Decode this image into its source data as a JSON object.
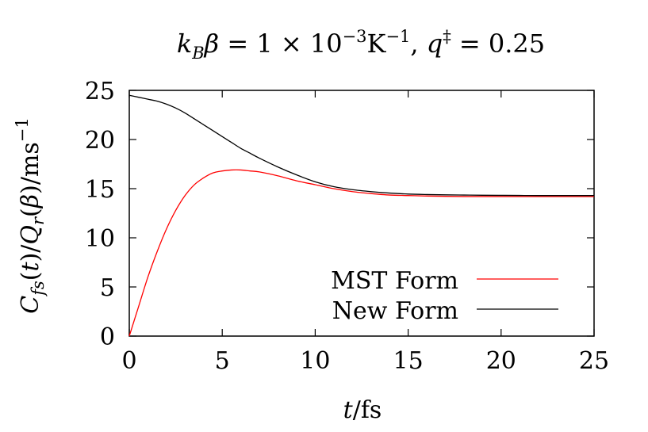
{
  "chart_data": {
    "type": "line",
    "title": "k_Bβ = 1 × 10⁻³K⁻¹,  q‡ = 0.25",
    "xlabel": "t/fs",
    "ylabel": "C_fs(t)/Q_r(β)/ms⁻¹",
    "xlim": [
      0,
      25
    ],
    "ylim": [
      0,
      25
    ],
    "x_ticks": [
      "0",
      "5",
      "10",
      "15",
      "20",
      "25"
    ],
    "y_ticks": [
      "0",
      "5",
      "10",
      "15",
      "20",
      "25"
    ],
    "grid": false,
    "legend_position": "bottom-right",
    "series": [
      {
        "name": "MST Form",
        "color": "#ff0000",
        "x": [
          0,
          0.5,
          1,
          1.5,
          2,
          2.5,
          3,
          3.5,
          4,
          4.5,
          5,
          5.5,
          6,
          6.5,
          7,
          8,
          9,
          10,
          11,
          12,
          13,
          14,
          15,
          16,
          17,
          18,
          19,
          20,
          21,
          22,
          23,
          24,
          25
        ],
        "values": [
          0,
          3.0,
          6.0,
          8.6,
          10.9,
          12.8,
          14.3,
          15.4,
          16.1,
          16.6,
          16.8,
          16.9,
          16.9,
          16.8,
          16.7,
          16.3,
          15.8,
          15.4,
          15.0,
          14.7,
          14.5,
          14.35,
          14.3,
          14.25,
          14.22,
          14.2,
          14.2,
          14.2,
          14.2,
          14.2,
          14.2,
          14.2,
          14.2
        ]
      },
      {
        "name": "New Form",
        "color": "#000000",
        "x": [
          0,
          0.5,
          1,
          1.5,
          2,
          2.5,
          3,
          3.5,
          4,
          4.5,
          5,
          5.5,
          6,
          6.5,
          7,
          8,
          9,
          10,
          11,
          12,
          13,
          14,
          15,
          16,
          17,
          18,
          19,
          20,
          21,
          22,
          23,
          24,
          25
        ],
        "values": [
          24.5,
          24.3,
          24.1,
          23.9,
          23.6,
          23.2,
          22.7,
          22.1,
          21.5,
          20.9,
          20.3,
          19.7,
          19.1,
          18.6,
          18.1,
          17.2,
          16.4,
          15.7,
          15.2,
          14.9,
          14.7,
          14.55,
          14.45,
          14.4,
          14.37,
          14.35,
          14.33,
          14.32,
          14.31,
          14.3,
          14.3,
          14.3,
          14.3
        ]
      }
    ]
  }
}
